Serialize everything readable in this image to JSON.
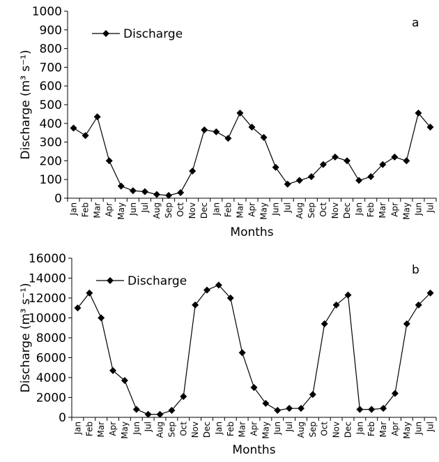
{
  "chart_data": [
    {
      "type": "line",
      "annotation": "a",
      "y_label": "Discharge (m³ s⁻¹)",
      "x_label": "Months",
      "categories": [
        "Jan",
        "Feb",
        "Mar",
        "Apr",
        "May",
        "Jun",
        "Jul",
        "Aug",
        "Sep",
        "Oct",
        "Nov",
        "Dec",
        "Jan",
        "Feb",
        "Mar",
        "Apr",
        "May",
        "Jun",
        "Jul",
        "Aug",
        "Sep",
        "Oct",
        "Nov",
        "Dec",
        "Jan",
        "Feb",
        "Mar",
        "Apr",
        "May",
        "Jun",
        "Jul"
      ],
      "series": [
        {
          "name": "Discharge",
          "color": "#000000",
          "values": [
            375,
            335,
            435,
            200,
            65,
            40,
            35,
            20,
            15,
            30,
            145,
            365,
            355,
            320,
            455,
            380,
            325,
            165,
            75,
            95,
            115,
            180,
            220,
            200,
            95,
            115,
            180,
            220,
            200,
            455,
            380
          ]
        }
      ],
      "ylim": [
        0,
        1000
      ],
      "yticks": [
        0,
        100,
        200,
        300,
        400,
        500,
        600,
        700,
        800,
        900,
        1000
      ],
      "legend": "upper-left"
    },
    {
      "type": "line",
      "annotation": "b",
      "y_label": "Discharge (m³ s⁻¹)",
      "x_label": "Months",
      "categories": [
        "Jan",
        "Feb",
        "Mar",
        "Apr",
        "May",
        "Jun",
        "Jul",
        "Aug",
        "Sep",
        "Oct",
        "Nov",
        "Dec",
        "Jan",
        "Feb",
        "Mar",
        "Apr",
        "May",
        "Jun",
        "Jul",
        "Aug",
        "Sep",
        "Oct",
        "Nov",
        "Dec",
        "Jan",
        "Feb",
        "Mar",
        "Apr",
        "May",
        "Jun",
        "Jul"
      ],
      "series": [
        {
          "name": "Discharge",
          "color": "#000000",
          "values": [
            11000,
            12500,
            10000,
            4700,
            3700,
            800,
            300,
            300,
            700,
            2100,
            11300,
            12800,
            13300,
            12000,
            6500,
            3000,
            1400,
            700,
            900,
            900,
            2300,
            9400,
            11300,
            12300,
            800,
            800,
            900,
            2400,
            9400,
            11300,
            12500
          ]
        }
      ],
      "ylim": [
        0,
        16000
      ],
      "yticks": [
        0,
        2000,
        4000,
        6000,
        8000,
        10000,
        12000,
        14000,
        16000
      ],
      "legend": "upper-left"
    }
  ]
}
